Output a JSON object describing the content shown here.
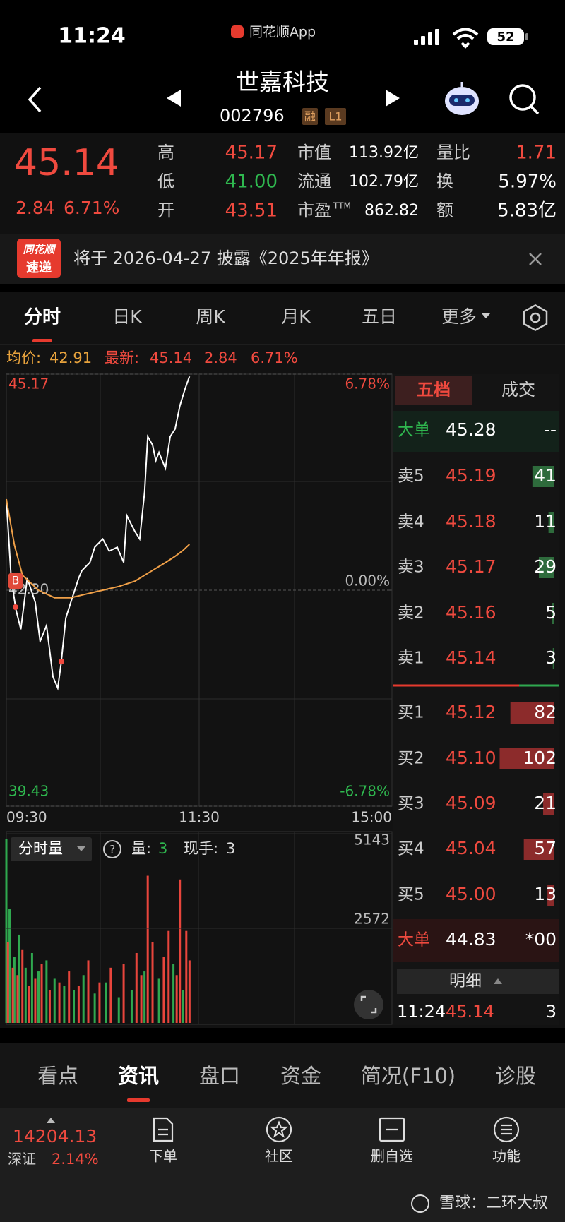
{
  "status_bar": {
    "time": "11:24",
    "app": "同花顺App",
    "battery": "52"
  },
  "header": {
    "name": "世嘉科技",
    "code": "002796",
    "tags": [
      "融",
      "L1"
    ]
  },
  "quote": {
    "price": "45.14",
    "change": "2.84",
    "change_pct": "6.71%",
    "fields": [
      [
        {
          "label": "高",
          "value": "45.17"
        },
        {
          "label": "市值",
          "value": "113.92亿"
        },
        {
          "label": "量比",
          "value": "1.71"
        }
      ],
      [
        {
          "label": "低",
          "value": "41.00"
        },
        {
          "label": "流通",
          "value": "102.79亿"
        },
        {
          "label": "换",
          "value": "5.97%"
        }
      ],
      [
        {
          "label": "开",
          "value": "43.51"
        },
        {
          "label": "市盈",
          "sup": "TTM",
          "value": "862.82"
        },
        {
          "label": "额",
          "value": "5.83亿"
        }
      ]
    ]
  },
  "notice": {
    "badge": [
      "同花顺",
      "速递"
    ],
    "text": "将于 2026-04-27 披露《2025年年报》"
  },
  "chart_tabs": [
    "分时",
    "日K",
    "周K",
    "月K",
    "五日",
    "更多"
  ],
  "info": {
    "avg_label": "均价:",
    "avg": "42.91",
    "last_label": "最新:",
    "last": "45.14",
    "change": "2.84",
    "change_pct": "6.71%"
  },
  "chart_data": [
    {
      "type": "line",
      "xlim": [
        0,
        240
      ],
      "xticks": [
        {
          "value": 0,
          "label": "09:30"
        },
        {
          "value": 120,
          "label": "11:30"
        },
        {
          "value": 240,
          "label": "15:00"
        }
      ],
      "ylim": [
        39.43,
        45.17
      ],
      "yticks": [
        45.17,
        {
          "value": 42.3,
          "label": "42.30"
        },
        39.43
      ],
      "y2lim": [
        -6.78,
        6.78
      ],
      "y2ticks": [
        {
          "value": 6.78,
          "label": "6.78%"
        },
        {
          "value": 0,
          "label": "0.00%"
        },
        {
          "value": -6.78,
          "label": "-6.78%"
        }
      ],
      "annotations": [
        "B"
      ],
      "series": [
        {
          "color": "#ffffff",
          "x": [
            0,
            3,
            6,
            9,
            13,
            18,
            21,
            25,
            29,
            32,
            34,
            37,
            41,
            45,
            47,
            52,
            55,
            60,
            64,
            69,
            73,
            75,
            80,
            83,
            86,
            88,
            91,
            93,
            95,
            99,
            102,
            105,
            108,
            111,
            114
          ],
          "values": [
            43.51,
            42.46,
            42.04,
            41.78,
            42.46,
            42.14,
            41.62,
            41.83,
            41.15,
            41.0,
            41.31,
            41.93,
            42.2,
            42.46,
            42.56,
            42.67,
            42.87,
            42.98,
            42.82,
            42.87,
            42.67,
            43.29,
            43.08,
            42.98,
            43.6,
            44.34,
            44.23,
            44.02,
            44.13,
            43.92,
            44.34,
            44.44,
            44.75,
            44.96,
            45.14
          ]
        },
        {
          "color": "#f0a048",
          "x": [
            0,
            5,
            10,
            20,
            30,
            40,
            50,
            60,
            70,
            80,
            90,
            100,
            105,
            110,
            114
          ],
          "values": [
            43.51,
            42.9,
            42.5,
            42.3,
            42.2,
            42.2,
            42.25,
            42.3,
            42.35,
            42.42,
            42.55,
            42.68,
            42.75,
            42.83,
            42.91
          ]
        }
      ]
    },
    {
      "type": "bar",
      "xlim": [
        0,
        240
      ],
      "ylim": [
        0,
        5143
      ],
      "yticks": [
        5143,
        2572
      ],
      "series": [
        {
          "color": "#2fa84f",
          "x": [
            0,
            2,
            5,
            8,
            12,
            16,
            20,
            25,
            30,
            36,
            42,
            48,
            55,
            62,
            70,
            78,
            86,
            95,
            104,
            110
          ],
          "values": [
            5000,
            3100,
            1800,
            2400,
            1500,
            1900,
            1400,
            1700,
            1200,
            1000,
            900,
            1300,
            800,
            1100,
            700,
            900,
            1400,
            1200,
            1600,
            900
          ]
        },
        {
          "color": "#e8453c",
          "x": [
            1,
            4,
            7,
            10,
            14,
            18,
            22,
            27,
            33,
            39,
            45,
            51,
            58,
            65,
            73,
            81,
            84,
            88,
            91,
            98,
            101,
            106,
            108,
            112,
            114
          ],
          "values": [
            2200,
            1500,
            1300,
            2000,
            1000,
            1200,
            1600,
            900,
            1100,
            1400,
            1000,
            1700,
            1100,
            1500,
            1600,
            1900,
            1300,
            4000,
            2200,
            1800,
            2500,
            1300,
            3900,
            2500,
            1700
          ]
        }
      ]
    }
  ],
  "volume_header": {
    "title": "分时量",
    "help": "?",
    "vol_label": "量:",
    "vol": "3",
    "hand_label": "现手:",
    "hand": "3"
  },
  "order_book": {
    "tabs": [
      "五档",
      "成交"
    ],
    "big_top": {
      "label": "大单",
      "price": "45.28",
      "volume": "--"
    },
    "asks": [
      {
        "label": "卖5",
        "price": "45.19",
        "volume": 41
      },
      {
        "label": "卖4",
        "price": "45.18",
        "volume": 11
      },
      {
        "label": "卖3",
        "price": "45.17",
        "volume": 29
      },
      {
        "label": "卖2",
        "price": "45.16",
        "volume": 5
      },
      {
        "label": "卖1",
        "price": "45.14",
        "volume": 3
      }
    ],
    "bids": [
      {
        "label": "买1",
        "price": "45.12",
        "volume": 82
      },
      {
        "label": "买2",
        "price": "45.10",
        "volume": 102
      },
      {
        "label": "买3",
        "price": "45.09",
        "volume": 21
      },
      {
        "label": "买4",
        "price": "45.04",
        "volume": 57
      },
      {
        "label": "买5",
        "price": "45.00",
        "volume": 13
      }
    ],
    "big_bottom": {
      "label": "大单",
      "price": "44.83",
      "volume": "*00"
    }
  },
  "ticks": {
    "title": "明细",
    "rows": [
      {
        "time": "11:24",
        "price": "45.14",
        "volume": 3
      }
    ]
  },
  "bottom_tabs": [
    "看点",
    "资讯",
    "盘口",
    "资金",
    "简况(F10)",
    "诊股"
  ],
  "nav": {
    "index": {
      "value": "14204.13",
      "name": "深证",
      "change_pct": "2.14%"
    },
    "items": [
      "下单",
      "社区",
      "删自选",
      "功能"
    ]
  },
  "watermark": "雪球：二环大叔"
}
